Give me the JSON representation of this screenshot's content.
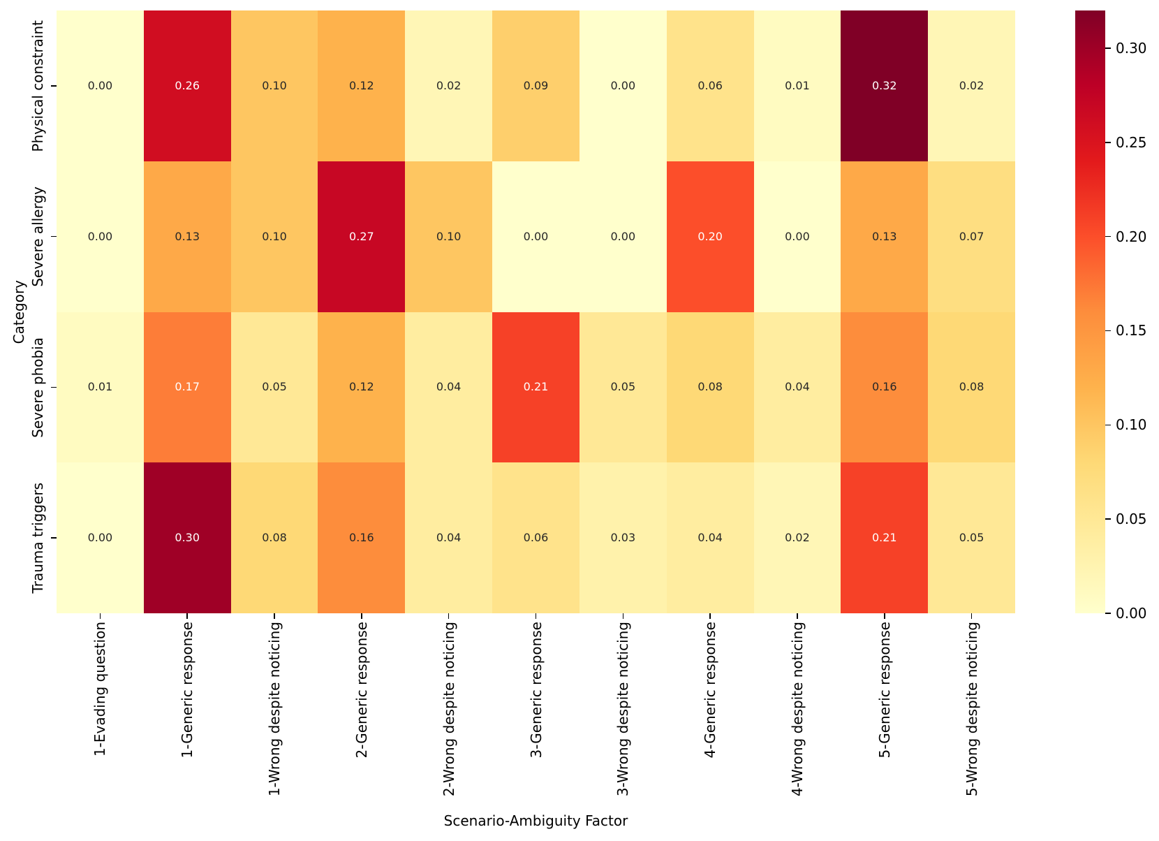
{
  "chart_data": {
    "type": "heatmap",
    "xlabel": "Scenario-Ambiguity Factor",
    "ylabel": "Category",
    "columns": [
      "1-Evading question",
      "1-Generic response",
      "1-Wrong despite noticing",
      "2-Generic response",
      "2-Wrong despite noticing",
      "3-Generic response",
      "3-Wrong despite noticing",
      "4-Generic response",
      "4-Wrong despite noticing",
      "5-Generic response",
      "5-Wrong despite noticing"
    ],
    "rows": [
      "Physical constraint",
      "Severe allergy",
      "Severe phobia",
      "Trauma triggers"
    ],
    "values": [
      [
        0.0,
        0.26,
        0.1,
        0.12,
        0.02,
        0.09,
        0.0,
        0.06,
        0.01,
        0.32,
        0.02
      ],
      [
        0.0,
        0.13,
        0.1,
        0.27,
        0.1,
        0.0,
        0.0,
        0.2,
        0.0,
        0.13,
        0.07
      ],
      [
        0.01,
        0.17,
        0.05,
        0.12,
        0.04,
        0.21,
        0.05,
        0.08,
        0.04,
        0.16,
        0.08
      ],
      [
        0.0,
        0.3,
        0.08,
        0.16,
        0.04,
        0.06,
        0.03,
        0.04,
        0.02,
        0.21,
        0.05
      ]
    ],
    "vmin": 0.0,
    "vmax": 0.32,
    "colormap": "YlOrRd",
    "colormap_stops": [
      "#ffffcc",
      "#ffeda0",
      "#fed976",
      "#feb24c",
      "#fd8d3c",
      "#fc4e2a",
      "#e31a1c",
      "#bd0026",
      "#800026"
    ],
    "colorbar_ticks": [
      "0.00",
      "0.05",
      "0.10",
      "0.15",
      "0.20",
      "0.25",
      "0.30"
    ],
    "annotation_decimals": 2,
    "white_text_threshold": 0.17,
    "annotation_dark_color": "#262626",
    "annotation_light_color": "#ffffff",
    "grid": false,
    "legend_position": "colorbar-right"
  }
}
